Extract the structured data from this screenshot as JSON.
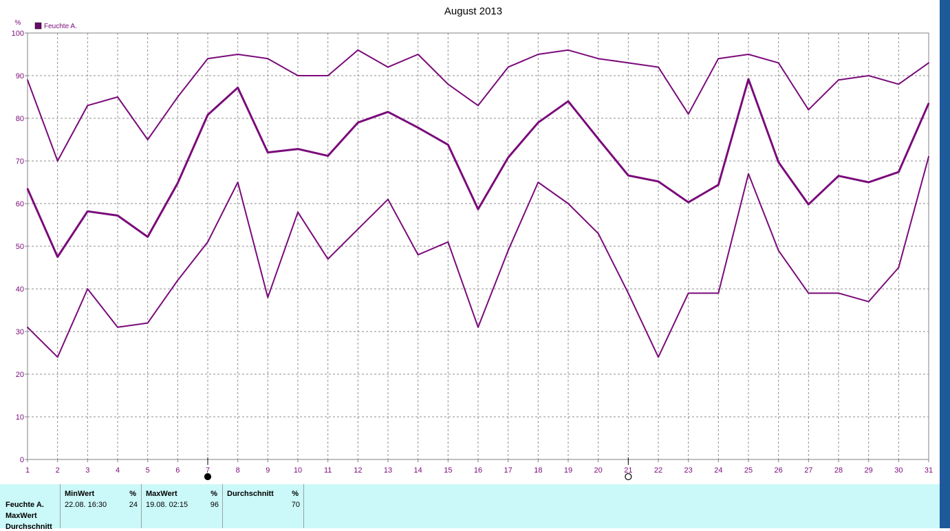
{
  "chart_data": {
    "type": "line",
    "title": "August 2013",
    "ylabel": "%",
    "ylim": [
      0,
      100
    ],
    "yticks": [
      0,
      10,
      20,
      30,
      40,
      50,
      60,
      70,
      80,
      90,
      100
    ],
    "x": [
      1,
      2,
      3,
      4,
      5,
      6,
      7,
      8,
      9,
      10,
      11,
      12,
      13,
      14,
      15,
      16,
      17,
      18,
      19,
      20,
      21,
      22,
      23,
      24,
      25,
      26,
      27,
      28,
      29,
      30,
      31
    ],
    "grid": true,
    "legend": {
      "position": "top-left",
      "entries": [
        "Feuchte A."
      ]
    },
    "color": "#7a0a7a",
    "series": [
      {
        "values": [
          89,
          70,
          83,
          85,
          75,
          85,
          94,
          95,
          94,
          90,
          90,
          96,
          92,
          95,
          88,
          83,
          92,
          95,
          96,
          94,
          93,
          92,
          81,
          94,
          95,
          93,
          82,
          89,
          90,
          88,
          93
        ]
      },
      {
        "name": "Feuchte A.",
        "values": [
          63.5,
          47.5,
          58.2,
          57.2,
          52.2,
          64.8,
          80.8,
          87.2,
          72,
          72.8,
          71.2,
          79,
          81.5,
          77.8,
          73.8,
          58.7,
          70.8,
          79,
          84,
          75.2,
          66.6,
          65.2,
          60.3,
          64.4,
          89.2,
          69.7,
          59.8,
          66.5,
          65,
          67.4,
          83.5
        ]
      },
      {
        "values": [
          31,
          24,
          40,
          31,
          32,
          42,
          51,
          65,
          38,
          58,
          47,
          54,
          61,
          48,
          51,
          31,
          49,
          65,
          60,
          53,
          39,
          24,
          39,
          39,
          67,
          49,
          39,
          39,
          37,
          45,
          71
        ]
      }
    ],
    "moon_phases": [
      {
        "day": 7,
        "phase": "new-moon"
      },
      {
        "day": 21,
        "phase": "full-moon"
      }
    ]
  },
  "stats": {
    "row_labels": [
      "Feuchte A.",
      "MaxWert",
      "Durchschnitt"
    ],
    "min": {
      "label": "MinWert",
      "unit": "%",
      "timestamp": "22.08.  16:30",
      "value": "24"
    },
    "max": {
      "label": "MaxWert",
      "unit": "%",
      "timestamp": "19.08.  02:15",
      "value": "96"
    },
    "avg": {
      "label": "Durchschnitt",
      "unit": "%",
      "value": "70"
    }
  }
}
